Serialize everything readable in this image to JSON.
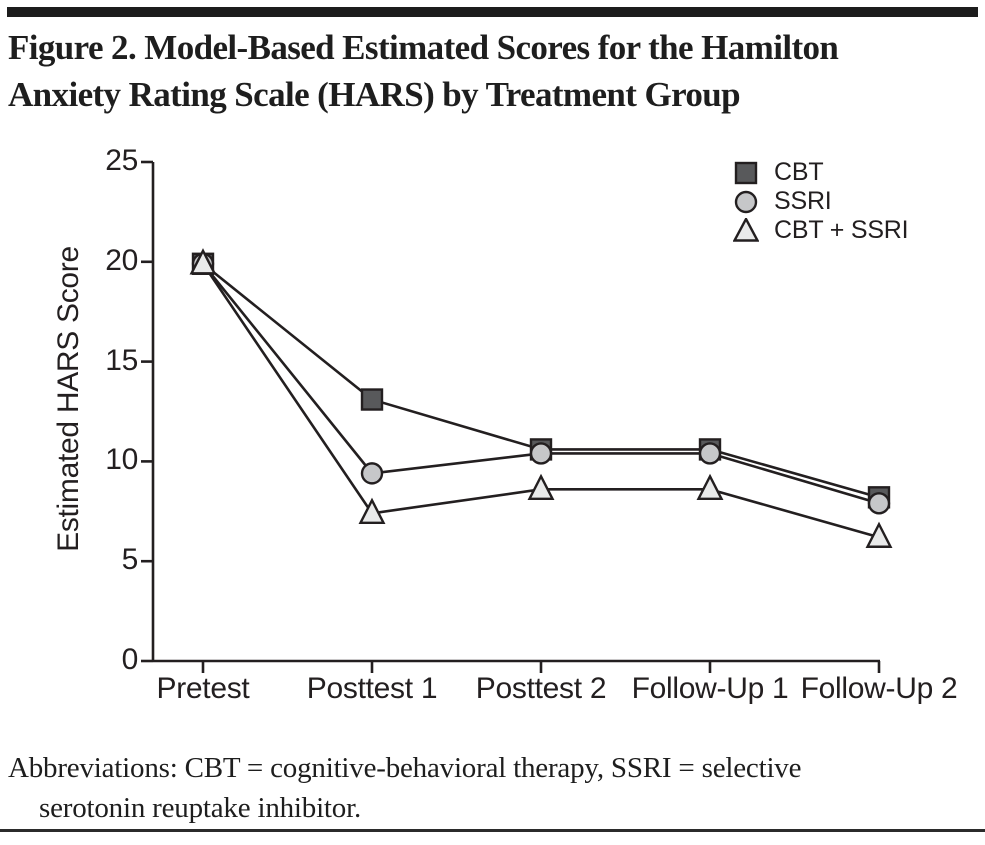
{
  "page": {
    "title_lines": [
      "Figure 2. Model-Based Estimated Scores for the Hamilton",
      "Anxiety Rating Scale (HARS) by Treatment Group"
    ]
  },
  "footer": {
    "lines": [
      "Abbreviations: CBT = cognitive-behavioral therapy, SSRI = selective",
      "serotonin reuptake inhibitor."
    ]
  },
  "chart_data": {
    "type": "line",
    "title": "Figure 2. Model-Based Estimated Scores for the Hamilton Anxiety Rating Scale (HARS) by Treatment Group",
    "ylabel": "Estimated HARS Score",
    "xlabel": "",
    "ylim": [
      0,
      25
    ],
    "yticks": [
      0,
      5,
      10,
      15,
      20,
      25
    ],
    "grid": false,
    "legend_position": "top-right",
    "categories": [
      "Pretest",
      "Posttest 1",
      "Posttest 2",
      "Follow-Up 1",
      "Follow-Up 2"
    ],
    "series": [
      {
        "name": "CBT",
        "marker": "square",
        "fill": "#58595b",
        "values": [
          19.9,
          13.1,
          10.6,
          10.6,
          8.2
        ]
      },
      {
        "name": "SSRI",
        "marker": "circle",
        "fill": "#c6c7c9",
        "values": [
          19.9,
          9.4,
          10.4,
          10.4,
          7.9
        ]
      },
      {
        "name": "CBT + SSRI",
        "marker": "triangle",
        "fill": "#e9eaea",
        "values": [
          19.9,
          7.4,
          8.6,
          8.6,
          6.2
        ]
      }
    ],
    "line_color": "#231f20"
  }
}
